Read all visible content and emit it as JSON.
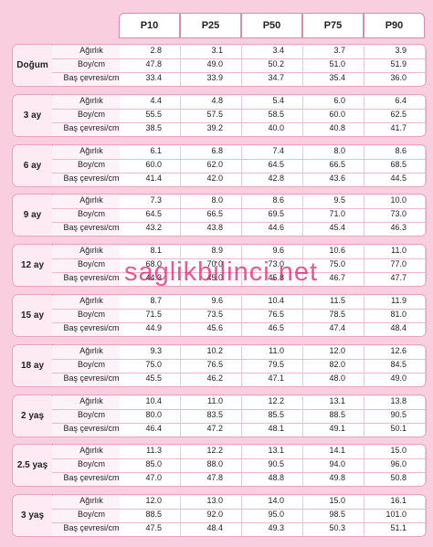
{
  "headers": [
    "P10",
    "P25",
    "P50",
    "P75",
    "P90"
  ],
  "groups": [
    {
      "label": "Doğum",
      "rows": [
        {
          "label": "Ağırlık",
          "values": [
            "2.8",
            "3.1",
            "3.4",
            "3.7",
            "3.9"
          ]
        },
        {
          "label": "Boy/cm",
          "values": [
            "47.8",
            "49.0",
            "50.2",
            "51.0",
            "51.9"
          ]
        },
        {
          "label": "Baş çevresi/cm",
          "values": [
            "33.4",
            "33.9",
            "34.7",
            "35.4",
            "36.0"
          ]
        }
      ]
    },
    {
      "label": "3 ay",
      "rows": [
        {
          "label": "Ağırlık",
          "values": [
            "4.4",
            "4.8",
            "5.4",
            "6.0",
            "6.4"
          ]
        },
        {
          "label": "Boy/cm",
          "values": [
            "55.5",
            "57.5",
            "58.5",
            "60.0",
            "62.5"
          ]
        },
        {
          "label": "Baş çevresi/cm",
          "values": [
            "38.5",
            "39.2",
            "40.0",
            "40.8",
            "41.7"
          ]
        }
      ]
    },
    {
      "label": "6 ay",
      "rows": [
        {
          "label": "Ağırlık",
          "values": [
            "6.1",
            "6.8",
            "7.4",
            "8.0",
            "8.6"
          ]
        },
        {
          "label": "Boy/cm",
          "values": [
            "60.0",
            "62.0",
            "64.5",
            "66.5",
            "68.5"
          ]
        },
        {
          "label": "Baş çevresi/cm",
          "values": [
            "41.4",
            "42.0",
            "42.8",
            "43.6",
            "44.5"
          ]
        }
      ]
    },
    {
      "label": "9 ay",
      "rows": [
        {
          "label": "Ağırlık",
          "values": [
            "7.3",
            "8.0",
            "8.6",
            "9.5",
            "10.0"
          ]
        },
        {
          "label": "Boy/cm",
          "values": [
            "64.5",
            "66.5",
            "69.5",
            "71.0",
            "73.0"
          ]
        },
        {
          "label": "Baş çevresi/cm",
          "values": [
            "43.2",
            "43.8",
            "44.6",
            "45.4",
            "46.3"
          ]
        }
      ]
    },
    {
      "label": "12 ay",
      "rows": [
        {
          "label": "Ağırlık",
          "values": [
            "8.1",
            "8.9",
            "9.6",
            "10.6",
            "11.0"
          ]
        },
        {
          "label": "Boy/cm",
          "values": [
            "68.0",
            "70.0",
            "73.0",
            "75.0",
            "77.0"
          ]
        },
        {
          "label": "Baş çevresi/cm",
          "values": [
            "44.3",
            "45.0",
            "45.8",
            "46.7",
            "47.7"
          ]
        }
      ]
    },
    {
      "label": "15 ay",
      "rows": [
        {
          "label": "Ağırlık",
          "values": [
            "8.7",
            "9.6",
            "10.4",
            "11.5",
            "11.9"
          ]
        },
        {
          "label": "Boy/cm",
          "values": [
            "71.5",
            "73.5",
            "76.5",
            "78.5",
            "81.0"
          ]
        },
        {
          "label": "Baş çevresi/cm",
          "values": [
            "44.9",
            "45.6",
            "46.5",
            "47.4",
            "48.4"
          ]
        }
      ]
    },
    {
      "label": "18 ay",
      "rows": [
        {
          "label": "Ağırlık",
          "values": [
            "9.3",
            "10.2",
            "11.0",
            "12.0",
            "12.6"
          ]
        },
        {
          "label": "Boy/cm",
          "values": [
            "75.0",
            "76.5",
            "79.5",
            "82.0",
            "84.5"
          ]
        },
        {
          "label": "Baş çevresi/cm",
          "values": [
            "45.5",
            "46.2",
            "47.1",
            "48.0",
            "49.0"
          ]
        }
      ]
    },
    {
      "label": "2 yaş",
      "rows": [
        {
          "label": "Ağırlık",
          "values": [
            "10.4",
            "11.0",
            "12.2",
            "13.1",
            "13.8"
          ]
        },
        {
          "label": "Boy/cm",
          "values": [
            "80.0",
            "83.5",
            "85.5",
            "88.5",
            "90.5"
          ]
        },
        {
          "label": "Baş çevresi/cm",
          "values": [
            "46.4",
            "47.2",
            "48.1",
            "49.1",
            "50.1"
          ]
        }
      ]
    },
    {
      "label": "2.5 yaş",
      "rows": [
        {
          "label": "Ağırlık",
          "values": [
            "11.3",
            "12.2",
            "13.1",
            "14.1",
            "15.0"
          ]
        },
        {
          "label": "Boy/cm",
          "values": [
            "85.0",
            "88.0",
            "90.5",
            "94.0",
            "96.0"
          ]
        },
        {
          "label": "Baş çevresi/cm",
          "values": [
            "47.0",
            "47.8",
            "48.8",
            "49.8",
            "50.8"
          ]
        }
      ]
    },
    {
      "label": "3 yaş",
      "rows": [
        {
          "label": "Ağırlık",
          "values": [
            "12.0",
            "13.0",
            "14.0",
            "15.0",
            "16.1"
          ]
        },
        {
          "label": "Boy/cm",
          "values": [
            "88.5",
            "92.0",
            "95.0",
            "98.5",
            "101.0"
          ]
        },
        {
          "label": "Baş çevresi/cm",
          "values": [
            "47.5",
            "48.4",
            "49.3",
            "50.3",
            "51.1"
          ]
        }
      ]
    }
  ],
  "watermark": "saglikbilinci.net",
  "colors": {
    "background": "#f9cfe0",
    "watermark": "#d71c6e",
    "border": "#e6a3c2"
  }
}
